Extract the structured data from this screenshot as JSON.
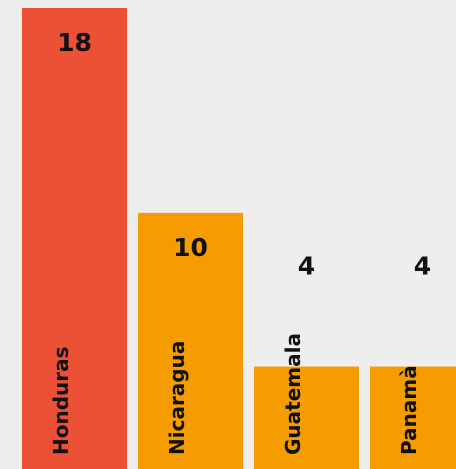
{
  "chart_data": {
    "type": "bar",
    "categories": [
      "Honduras",
      "Nicaragua",
      "Guatemala",
      "Panamà"
    ],
    "values": [
      18,
      10,
      4,
      4
    ],
    "colors": [
      "#ec5035",
      "#f59c00",
      "#f59c00",
      "#f59c00"
    ],
    "ylim": [
      0,
      18
    ]
  }
}
